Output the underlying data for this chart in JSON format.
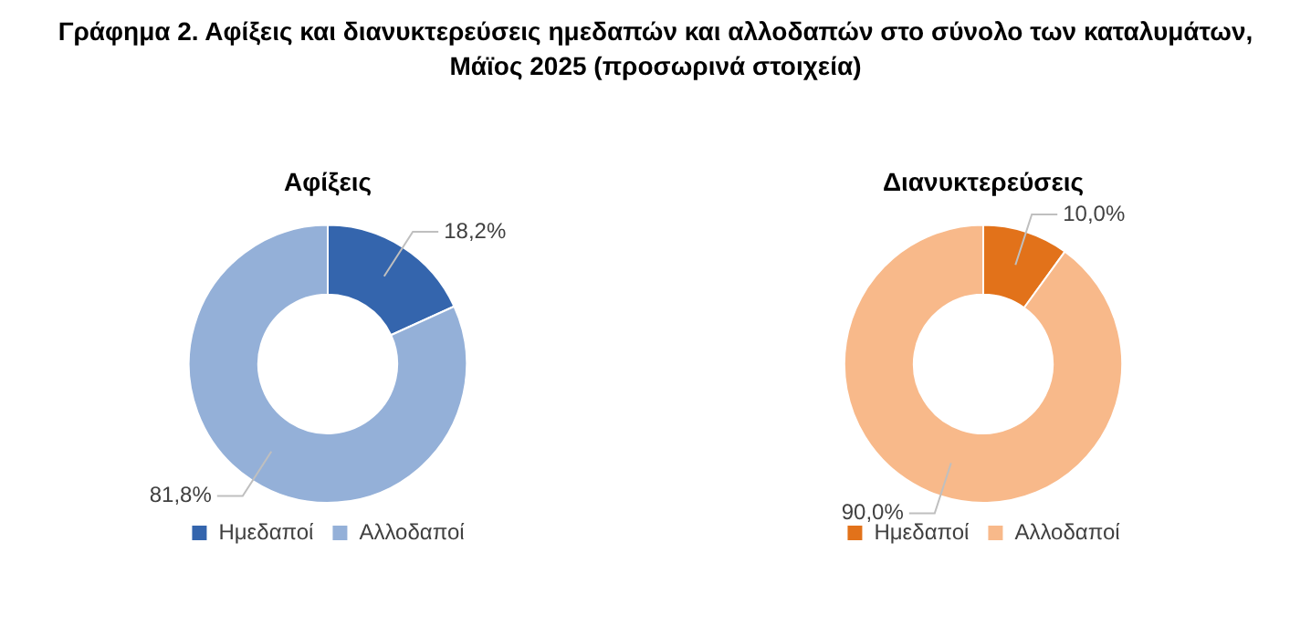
{
  "chart_data": [
    {
      "type": "other",
      "title": "Γράφημα 2. Αφίξεις και διανυκτερεύσεις ημεδαπών και αλλοδαπών στο σύνολο των καταλυμάτων,\nΜάϊος 2025  (προσωρινά στοιχεία)"
    },
    {
      "type": "donut",
      "title": "Αφίξεις",
      "categories": [
        "Ημεδαποί",
        "Αλλοδαποί"
      ],
      "values": [
        18.2,
        81.8
      ],
      "colors": [
        "#3465ad",
        "#94b0d8"
      ],
      "value_labels": [
        "18,2%",
        "81,8%"
      ],
      "legend": "bottom"
    },
    {
      "type": "donut",
      "title": "Διανυκτερεύσεις",
      "categories": [
        "Ημεδαποί",
        "Αλλοδαποί"
      ],
      "values": [
        10.0,
        90.0
      ],
      "colors": [
        "#e2721a",
        "#f8b98a"
      ],
      "value_labels": [
        "10,0%",
        "90,0%"
      ],
      "legend": "bottom"
    }
  ]
}
